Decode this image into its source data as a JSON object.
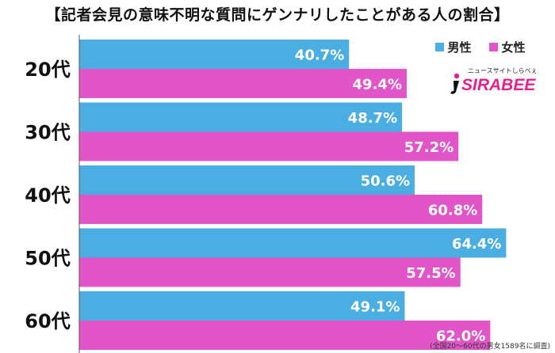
{
  "chart_data": {
    "type": "bar",
    "orientation": "horizontal",
    "title": "【記者会見の意味不明な質問にゲンナリしたことがある人の割合】",
    "categories": [
      "20代",
      "30代",
      "40代",
      "50代",
      "60代"
    ],
    "series": [
      {
        "name": "男性",
        "color": "#4aaee3",
        "values": [
          40.7,
          48.7,
          50.6,
          64.4,
          49.1
        ],
        "labels": [
          "40.7%",
          "48.7%",
          "50.6%",
          "64.4%",
          "49.1%"
        ]
      },
      {
        "name": "女性",
        "color": "#e155c8",
        "values": [
          49.4,
          57.2,
          60.8,
          57.5,
          62.0
        ],
        "labels": [
          "49.4%",
          "57.2%",
          "60.8%",
          "57.5%",
          "62.0%"
        ]
      }
    ],
    "xlim": [
      0,
      100
    ],
    "grid": false,
    "legend_position": "top-right"
  },
  "logo": {
    "tagline": "ニュースサイトしらべぇ",
    "name": "SIRABEE",
    "color": "#e6218f"
  },
  "footnote": "(全国20〜60代の男女1589名に調査)"
}
